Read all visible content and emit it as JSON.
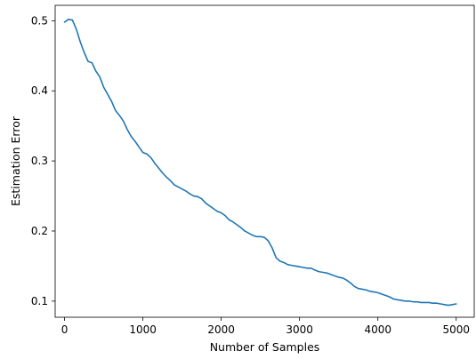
{
  "chart_data": {
    "type": "line",
    "title": "",
    "xlabel": "Number of Samples",
    "ylabel": "Estimation Error",
    "xlim": [
      -120,
      5230
    ],
    "ylim": [
      0.077,
      0.522
    ],
    "xticks": [
      0,
      1000,
      2000,
      3000,
      4000,
      5000
    ],
    "xtick_labels": [
      "0",
      "1000",
      "2000",
      "3000",
      "4000",
      "5000"
    ],
    "yticks": [
      0.1,
      0.2,
      0.3,
      0.4,
      0.5
    ],
    "ytick_labels": [
      "0.1",
      "0.2",
      "0.3",
      "0.4",
      "0.5"
    ],
    "grid": false,
    "legend": "none",
    "series": [
      {
        "color": "#1f77b4",
        "x": [
          0,
          50,
          100,
          150,
          200,
          250,
          300,
          350,
          400,
          450,
          500,
          550,
          600,
          650,
          700,
          750,
          800,
          850,
          900,
          950,
          1000,
          1050,
          1100,
          1150,
          1200,
          1250,
          1300,
          1350,
          1400,
          1450,
          1500,
          1550,
          1600,
          1650,
          1700,
          1750,
          1800,
          1850,
          1900,
          1950,
          2000,
          2050,
          2100,
          2150,
          2200,
          2250,
          2300,
          2350,
          2400,
          2450,
          2500,
          2550,
          2600,
          2650,
          2700,
          2750,
          2800,
          2850,
          2900,
          2950,
          3000,
          3050,
          3100,
          3150,
          3200,
          3250,
          3300,
          3350,
          3400,
          3450,
          3500,
          3550,
          3600,
          3650,
          3700,
          3750,
          3800,
          3850,
          3900,
          3950,
          4000,
          4050,
          4100,
          4150,
          4200,
          4250,
          4300,
          4350,
          4400,
          4450,
          4500,
          4550,
          4600,
          4650,
          4700,
          4750,
          4800,
          4850,
          4900,
          4950,
          5000
        ],
        "y": [
          0.498,
          0.502,
          0.501,
          0.488,
          0.47,
          0.455,
          0.442,
          0.44,
          0.428,
          0.42,
          0.405,
          0.395,
          0.385,
          0.372,
          0.365,
          0.357,
          0.345,
          0.335,
          0.328,
          0.32,
          0.312,
          0.31,
          0.305,
          0.297,
          0.29,
          0.283,
          0.277,
          0.272,
          0.266,
          0.263,
          0.26,
          0.257,
          0.253,
          0.25,
          0.249,
          0.246,
          0.24,
          0.236,
          0.232,
          0.228,
          0.226,
          0.222,
          0.216,
          0.213,
          0.209,
          0.205,
          0.2,
          0.197,
          0.194,
          0.192,
          0.192,
          0.191,
          0.186,
          0.176,
          0.162,
          0.157,
          0.155,
          0.152,
          0.151,
          0.15,
          0.149,
          0.148,
          0.147,
          0.147,
          0.144,
          0.142,
          0.141,
          0.14,
          0.138,
          0.136,
          0.134,
          0.133,
          0.13,
          0.126,
          0.121,
          0.118,
          0.117,
          0.116,
          0.114,
          0.113,
          0.112,
          0.11,
          0.108,
          0.106,
          0.103,
          0.102,
          0.101,
          0.1,
          0.1,
          0.099,
          0.099,
          0.098,
          0.098,
          0.098,
          0.097,
          0.097,
          0.096,
          0.095,
          0.094,
          0.095,
          0.096
        ]
      }
    ]
  }
}
